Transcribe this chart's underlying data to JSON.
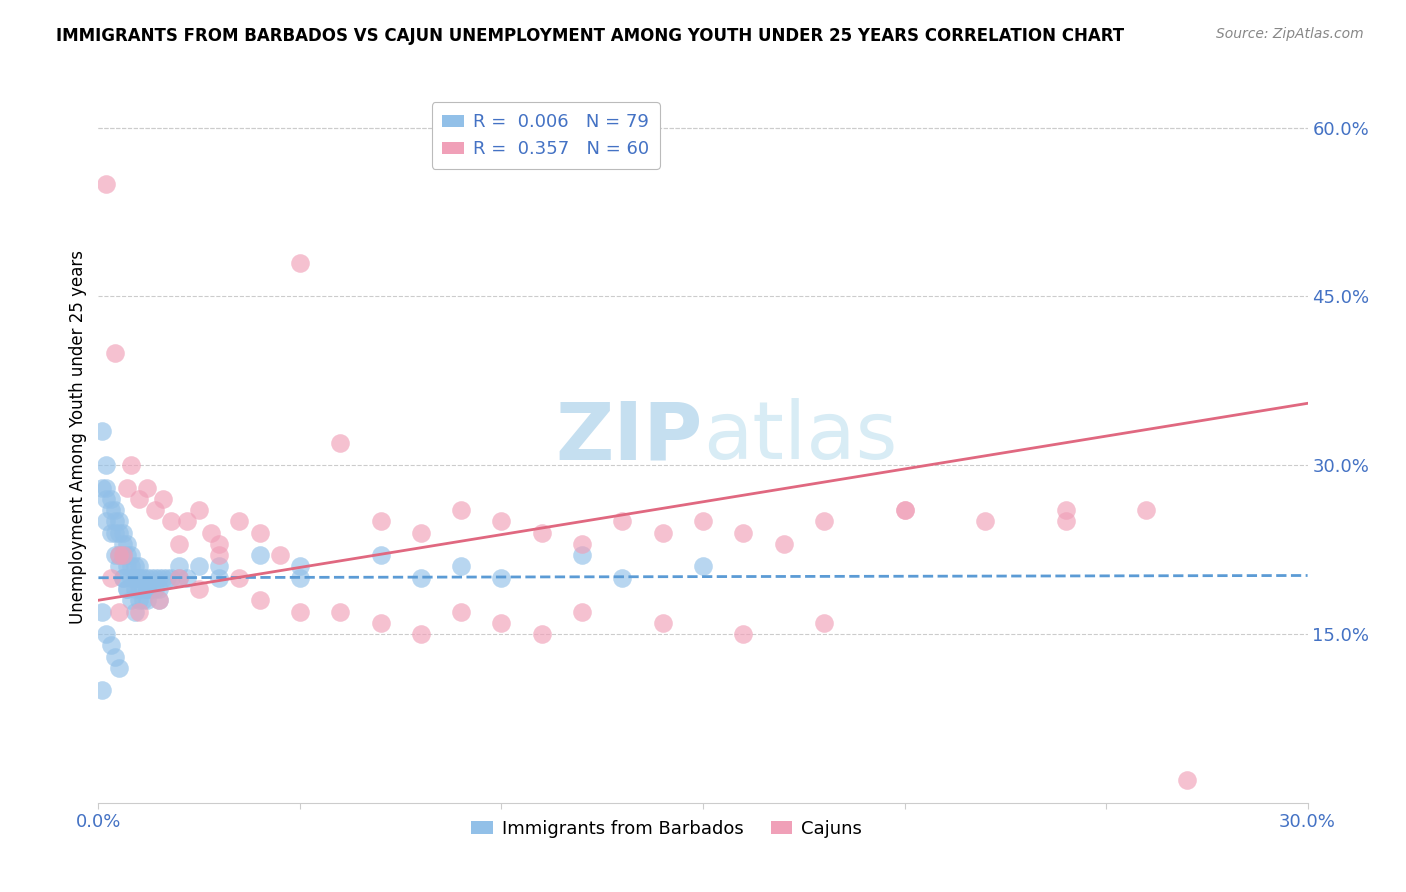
{
  "title": "IMMIGRANTS FROM BARBADOS VS CAJUN UNEMPLOYMENT AMONG YOUTH UNDER 25 YEARS CORRELATION CHART",
  "source": "Source: ZipAtlas.com",
  "ylabel": "Unemployment Among Youth under 25 years",
  "xlim": [
    0.0,
    0.3
  ],
  "ylim": [
    0.0,
    0.65
  ],
  "ytick_positions_right": [
    0.15,
    0.3,
    0.45,
    0.6
  ],
  "ytick_labels_right": [
    "15.0%",
    "30.0%",
    "45.0%",
    "60.0%"
  ],
  "color_blue": "#92C0E8",
  "color_pink": "#F0A0B8",
  "color_blue_line": "#5B9BD5",
  "color_pink_line": "#E06880",
  "color_blue_text": "#4472C4",
  "color_axis_text": "#4472C4",
  "watermark_color": "#D8ECF8",
  "grid_color": "#CCCCCC",
  "background_color": "#FFFFFF",
  "barbados_x": [
    0.001,
    0.001,
    0.001,
    0.002,
    0.002,
    0.002,
    0.002,
    0.003,
    0.003,
    0.003,
    0.004,
    0.004,
    0.004,
    0.004,
    0.005,
    0.005,
    0.005,
    0.005,
    0.006,
    0.006,
    0.006,
    0.006,
    0.007,
    0.007,
    0.007,
    0.007,
    0.008,
    0.008,
    0.008,
    0.009,
    0.009,
    0.009,
    0.01,
    0.01,
    0.01,
    0.01,
    0.011,
    0.011,
    0.011,
    0.012,
    0.012,
    0.012,
    0.013,
    0.013,
    0.014,
    0.014,
    0.015,
    0.015,
    0.016,
    0.017,
    0.018,
    0.02,
    0.022,
    0.025,
    0.03,
    0.04,
    0.05,
    0.07,
    0.09,
    0.12,
    0.15,
    0.001,
    0.002,
    0.003,
    0.004,
    0.005,
    0.006,
    0.007,
    0.008,
    0.009,
    0.01,
    0.012,
    0.015,
    0.02,
    0.03,
    0.05,
    0.08,
    0.1,
    0.13
  ],
  "barbados_y": [
    0.33,
    0.28,
    0.1,
    0.3,
    0.28,
    0.27,
    0.25,
    0.27,
    0.26,
    0.24,
    0.26,
    0.25,
    0.24,
    0.22,
    0.25,
    0.24,
    0.22,
    0.21,
    0.24,
    0.23,
    0.22,
    0.2,
    0.23,
    0.22,
    0.21,
    0.19,
    0.22,
    0.21,
    0.2,
    0.21,
    0.2,
    0.19,
    0.21,
    0.2,
    0.19,
    0.18,
    0.2,
    0.19,
    0.18,
    0.2,
    0.19,
    0.18,
    0.2,
    0.19,
    0.2,
    0.19,
    0.2,
    0.19,
    0.2,
    0.2,
    0.2,
    0.21,
    0.2,
    0.21,
    0.21,
    0.22,
    0.21,
    0.22,
    0.21,
    0.22,
    0.21,
    0.17,
    0.15,
    0.14,
    0.13,
    0.12,
    0.2,
    0.19,
    0.18,
    0.17,
    0.2,
    0.19,
    0.18,
    0.2,
    0.2,
    0.2,
    0.2,
    0.2,
    0.2
  ],
  "cajun_x": [
    0.002,
    0.003,
    0.004,
    0.005,
    0.006,
    0.007,
    0.008,
    0.01,
    0.012,
    0.014,
    0.016,
    0.018,
    0.02,
    0.022,
    0.025,
    0.028,
    0.03,
    0.035,
    0.04,
    0.045,
    0.05,
    0.06,
    0.07,
    0.08,
    0.09,
    0.1,
    0.11,
    0.12,
    0.13,
    0.14,
    0.15,
    0.16,
    0.17,
    0.18,
    0.2,
    0.22,
    0.24,
    0.26,
    0.005,
    0.01,
    0.015,
    0.02,
    0.025,
    0.03,
    0.035,
    0.04,
    0.05,
    0.06,
    0.07,
    0.08,
    0.09,
    0.1,
    0.11,
    0.12,
    0.14,
    0.16,
    0.18,
    0.2,
    0.24,
    0.27
  ],
  "cajun_y": [
    0.55,
    0.2,
    0.4,
    0.22,
    0.22,
    0.28,
    0.3,
    0.27,
    0.28,
    0.26,
    0.27,
    0.25,
    0.23,
    0.25,
    0.26,
    0.24,
    0.23,
    0.25,
    0.24,
    0.22,
    0.48,
    0.32,
    0.25,
    0.24,
    0.26,
    0.25,
    0.24,
    0.23,
    0.25,
    0.24,
    0.25,
    0.24,
    0.23,
    0.25,
    0.26,
    0.25,
    0.26,
    0.26,
    0.17,
    0.17,
    0.18,
    0.2,
    0.19,
    0.22,
    0.2,
    0.18,
    0.17,
    0.17,
    0.16,
    0.15,
    0.17,
    0.16,
    0.15,
    0.17,
    0.16,
    0.15,
    0.16,
    0.26,
    0.25,
    0.02
  ],
  "barbados_trend_x": [
    0.0,
    0.3
  ],
  "barbados_trend_y": [
    0.2,
    0.202
  ],
  "cajun_trend_x": [
    0.0,
    0.3
  ],
  "cajun_trend_y": [
    0.18,
    0.355
  ]
}
